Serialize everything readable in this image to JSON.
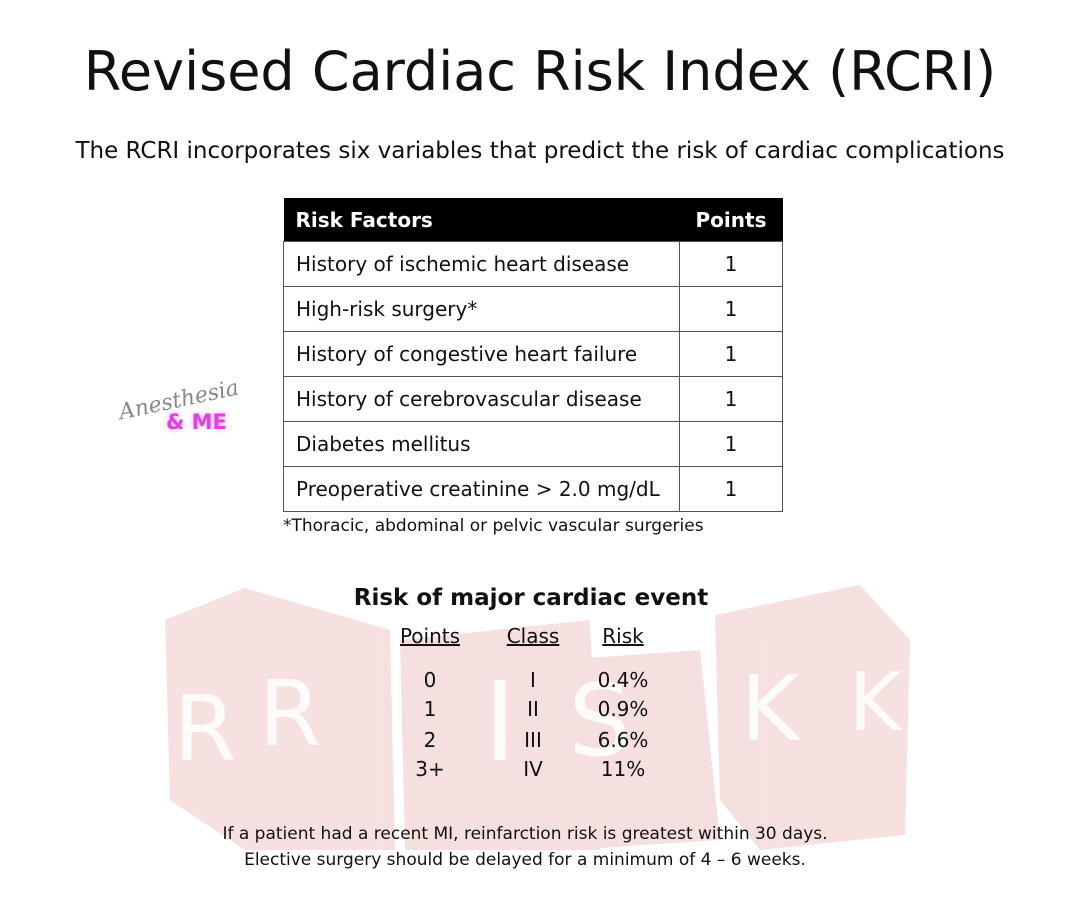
{
  "title": "Revised Cardiac Risk Index (RCRI)",
  "subtitle": "The RCRI incorporates six variables that predict the risk of cardiac complications",
  "table": {
    "headers": [
      "Risk Factors",
      "Points"
    ],
    "rows": [
      [
        "History of ischemic heart disease",
        1
      ],
      [
        "High-risk surgery*",
        1
      ],
      [
        "History of congestive heart failure",
        1
      ],
      [
        "History of cerebrovascular disease",
        1
      ],
      [
        "Diabetes mellitus",
        1
      ],
      [
        "Preoperative creatinine > 2.0 mg/dL",
        1
      ]
    ]
  },
  "footnote": "*Thoracic, abdominal or pelvic vascular surgeries",
  "watermark": {
    "script": "Anesthesia",
    "name": "& ME"
  },
  "dice_letters": [
    "R",
    "R",
    "I",
    "S",
    "K",
    "K"
  ],
  "risk": {
    "title": "Risk of major cardiac event",
    "headers": [
      "Points",
      "Class",
      "Risk"
    ],
    "rows": [
      [
        "0",
        "I",
        "0.4%"
      ],
      [
        "1",
        "II",
        "0.9%"
      ],
      [
        "2",
        "III",
        "6.6%"
      ],
      [
        "3+",
        "IV",
        "11%"
      ]
    ]
  },
  "notes": [
    "If a patient had a recent MI, reinfarction risk is greatest within 30 days.",
    "Elective surgery should be delayed for a minimum of 4 – 6 weeks."
  ]
}
